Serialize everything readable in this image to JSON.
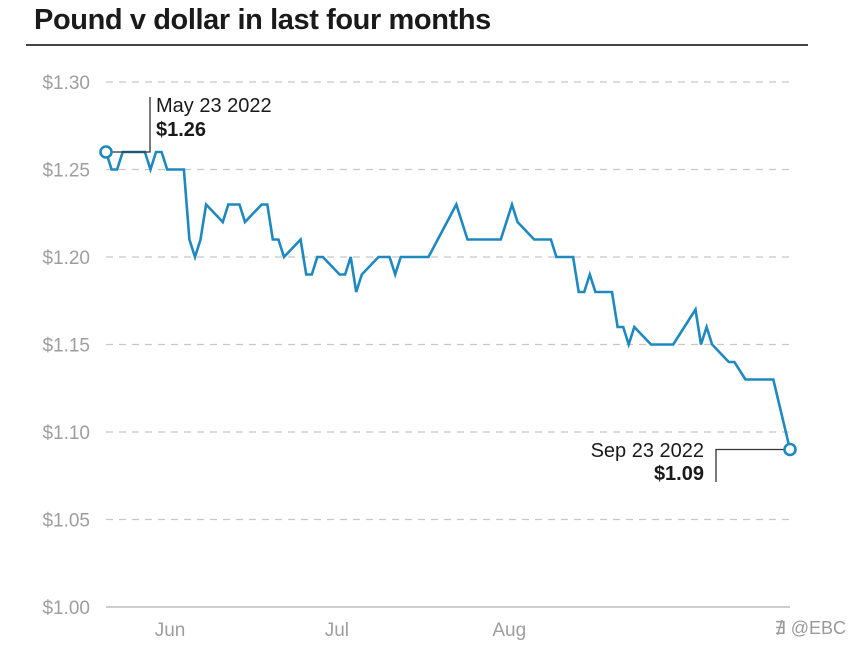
{
  "chart_data": {
    "type": "line",
    "title": "Pound v dollar in last four months",
    "xlabel": "",
    "ylabel": "",
    "ylim": [
      1.0,
      1.3
    ],
    "yticks": [
      1.3,
      1.25,
      1.2,
      1.15,
      1.1,
      1.05,
      1.0
    ],
    "ytick_labels": [
      "$1.30",
      "$1.25",
      "$1.20",
      "$1.15",
      "$1.10",
      "$1.05",
      "$1.00"
    ],
    "xticks": [
      {
        "date": "2022-06-01",
        "label": "Jun"
      },
      {
        "date": "2022-07-01",
        "label": "Jul"
      },
      {
        "date": "2022-08-01",
        "label": "Aug"
      }
    ],
    "x_range": [
      "2022-05-23",
      "2022-09-23"
    ],
    "grid": true,
    "line_color": "#1e88c0",
    "series": [
      {
        "points": [
          [
            "2022-05-23",
            1.26
          ],
          [
            "2022-05-24",
            1.25
          ],
          [
            "2022-05-25",
            1.25
          ],
          [
            "2022-05-26",
            1.26
          ],
          [
            "2022-05-27",
            1.26
          ],
          [
            "2022-05-30",
            1.26
          ],
          [
            "2022-05-31",
            1.25
          ],
          [
            "2022-06-01",
            1.26
          ],
          [
            "2022-06-02",
            1.26
          ],
          [
            "2022-06-03",
            1.25
          ],
          [
            "2022-06-06",
            1.25
          ],
          [
            "2022-06-07",
            1.21
          ],
          [
            "2022-06-08",
            1.2
          ],
          [
            "2022-06-09",
            1.21
          ],
          [
            "2022-06-10",
            1.23
          ],
          [
            "2022-06-13",
            1.22
          ],
          [
            "2022-06-14",
            1.23
          ],
          [
            "2022-06-15",
            1.23
          ],
          [
            "2022-06-16",
            1.23
          ],
          [
            "2022-06-17",
            1.22
          ],
          [
            "2022-06-20",
            1.23
          ],
          [
            "2022-06-21",
            1.23
          ],
          [
            "2022-06-22",
            1.21
          ],
          [
            "2022-06-23",
            1.21
          ],
          [
            "2022-06-24",
            1.2
          ],
          [
            "2022-06-27",
            1.21
          ],
          [
            "2022-06-28",
            1.19
          ],
          [
            "2022-06-29",
            1.19
          ],
          [
            "2022-06-30",
            1.2
          ],
          [
            "2022-07-01",
            1.2
          ],
          [
            "2022-07-04",
            1.19
          ],
          [
            "2022-07-05",
            1.19
          ],
          [
            "2022-07-06",
            1.2
          ],
          [
            "2022-07-07",
            1.18
          ],
          [
            "2022-07-08",
            1.19
          ],
          [
            "2022-07-11",
            1.2
          ],
          [
            "2022-07-12",
            1.2
          ],
          [
            "2022-07-13",
            1.2
          ],
          [
            "2022-07-14",
            1.19
          ],
          [
            "2022-07-15",
            1.2
          ],
          [
            "2022-07-18",
            1.2
          ],
          [
            "2022-07-19",
            1.2
          ],
          [
            "2022-07-20",
            1.2
          ],
          [
            "2022-07-25",
            1.23
          ],
          [
            "2022-07-26",
            1.22
          ],
          [
            "2022-07-27",
            1.21
          ],
          [
            "2022-07-28",
            1.21
          ],
          [
            "2022-08-01",
            1.21
          ],
          [
            "2022-08-02",
            1.21
          ],
          [
            "2022-08-04",
            1.23
          ],
          [
            "2022-08-05",
            1.22
          ],
          [
            "2022-08-08",
            1.21
          ],
          [
            "2022-08-09",
            1.21
          ],
          [
            "2022-08-11",
            1.21
          ],
          [
            "2022-08-12",
            1.2
          ],
          [
            "2022-08-15",
            1.2
          ],
          [
            "2022-08-16",
            1.18
          ],
          [
            "2022-08-17",
            1.18
          ],
          [
            "2022-08-18",
            1.19
          ],
          [
            "2022-08-19",
            1.18
          ],
          [
            "2022-08-22",
            1.18
          ],
          [
            "2022-08-23",
            1.16
          ],
          [
            "2022-08-24",
            1.16
          ],
          [
            "2022-08-25",
            1.15
          ],
          [
            "2022-08-26",
            1.16
          ],
          [
            "2022-08-29",
            1.15
          ],
          [
            "2022-08-30",
            1.15
          ],
          [
            "2022-09-01",
            1.15
          ],
          [
            "2022-09-02",
            1.15
          ],
          [
            "2022-09-06",
            1.17
          ],
          [
            "2022-09-07",
            1.15
          ],
          [
            "2022-09-08",
            1.16
          ],
          [
            "2022-09-09",
            1.15
          ],
          [
            "2022-09-12",
            1.14
          ],
          [
            "2022-09-13",
            1.14
          ],
          [
            "2022-09-15",
            1.13
          ],
          [
            "2022-09-16",
            1.13
          ],
          [
            "2022-09-20",
            1.13
          ],
          [
            "2022-09-23",
            1.09
          ]
        ]
      }
    ],
    "annotations": [
      {
        "name": "start",
        "date_label": "May 23 2022",
        "value_label": "$1.26",
        "date": "2022-05-23",
        "value": 1.26
      },
      {
        "name": "end",
        "date_label": "Sep 23 2022",
        "value_label": "$1.09",
        "date": "2022-09-23",
        "value": 1.09
      }
    ]
  },
  "watermark": "∄ @EBC"
}
